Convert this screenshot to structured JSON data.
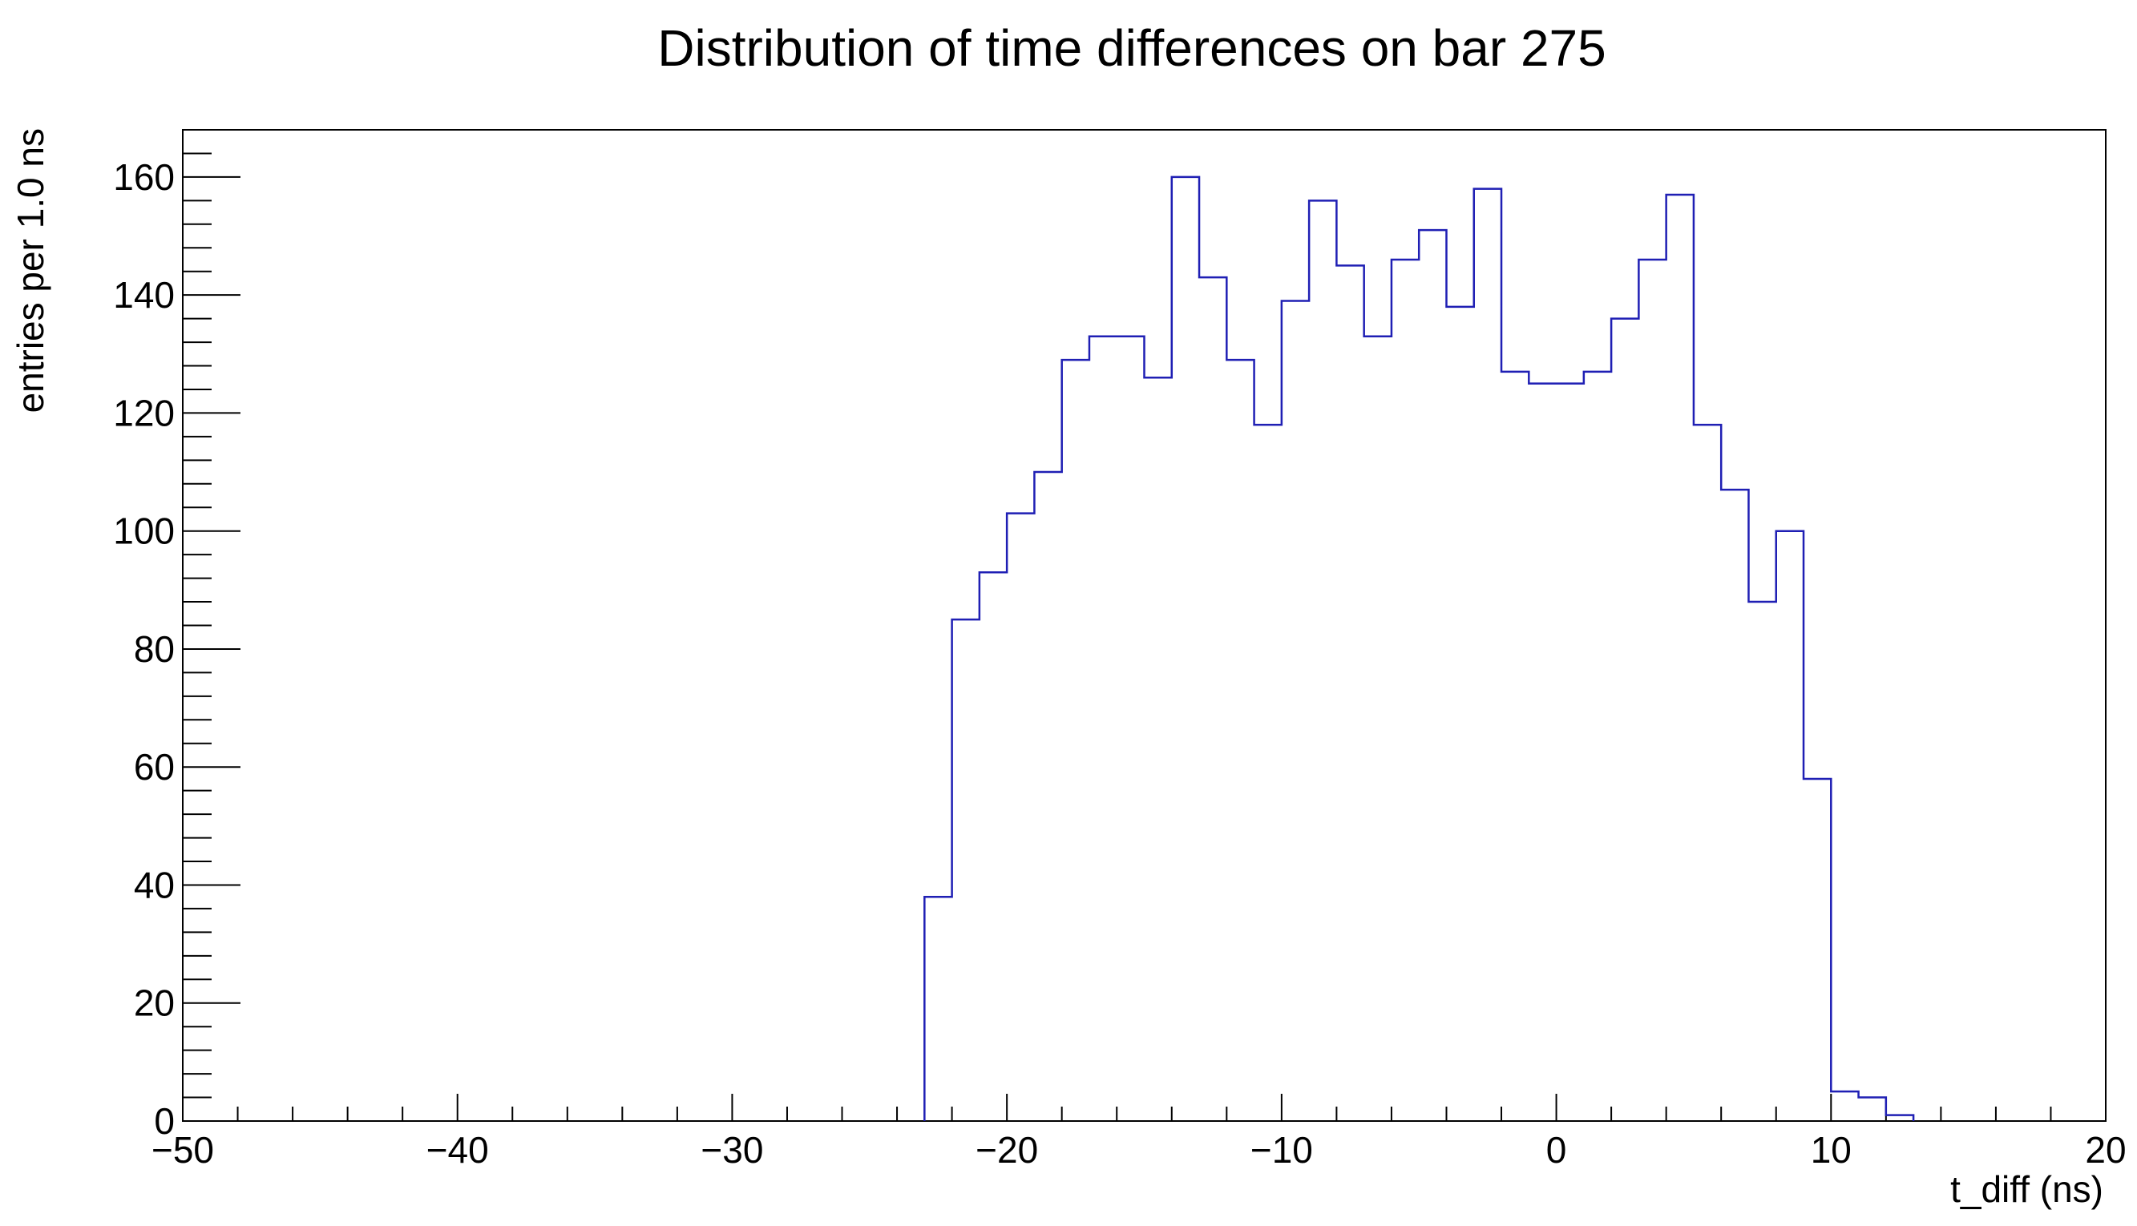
{
  "chart_data": {
    "type": "bar",
    "title": "Distribution of time differences on bar 275",
    "xlabel": "t_diff (ns)",
    "ylabel": "entries per 1.0 ns",
    "xlim": [
      -50,
      20
    ],
    "ylim": [
      0,
      168
    ],
    "bin_width": 1.0,
    "x_ticks": [
      -50,
      -40,
      -30,
      -20,
      -10,
      0,
      10,
      20
    ],
    "x_tick_labels": [
      "−50",
      "−40",
      "−30",
      "−20",
      "−10",
      "0",
      "10",
      "20"
    ],
    "y_ticks": [
      0,
      20,
      40,
      60,
      80,
      100,
      120,
      140,
      160
    ],
    "y_tick_labels": [
      "0",
      "20",
      "40",
      "60",
      "80",
      "100",
      "120",
      "140",
      "160"
    ],
    "grid": false,
    "legend": "none",
    "line_color": "#1f1fb4",
    "bins": [
      {
        "x": -23,
        "y": 38
      },
      {
        "x": -22,
        "y": 85
      },
      {
        "x": -21,
        "y": 93
      },
      {
        "x": -20,
        "y": 103
      },
      {
        "x": -19,
        "y": 110
      },
      {
        "x": -18,
        "y": 129
      },
      {
        "x": -17,
        "y": 133
      },
      {
        "x": -16,
        "y": 133
      },
      {
        "x": -15,
        "y": 126
      },
      {
        "x": -14,
        "y": 160
      },
      {
        "x": -13,
        "y": 143
      },
      {
        "x": -12,
        "y": 129
      },
      {
        "x": -11,
        "y": 118
      },
      {
        "x": -10,
        "y": 139
      },
      {
        "x": -9,
        "y": 156
      },
      {
        "x": -8,
        "y": 145
      },
      {
        "x": -7,
        "y": 133
      },
      {
        "x": -6,
        "y": 146
      },
      {
        "x": -5,
        "y": 151
      },
      {
        "x": -4,
        "y": 138
      },
      {
        "x": -3,
        "y": 158
      },
      {
        "x": -2,
        "y": 127
      },
      {
        "x": -1,
        "y": 125
      },
      {
        "x": 0,
        "y": 125
      },
      {
        "x": 1,
        "y": 127
      },
      {
        "x": 2,
        "y": 136
      },
      {
        "x": 3,
        "y": 146
      },
      {
        "x": 4,
        "y": 157
      },
      {
        "x": 5,
        "y": 118
      },
      {
        "x": 6,
        "y": 107
      },
      {
        "x": 7,
        "y": 88
      },
      {
        "x": 8,
        "y": 100
      },
      {
        "x": 9,
        "y": 58
      },
      {
        "x": 10,
        "y": 5
      },
      {
        "x": 11,
        "y": 4
      },
      {
        "x": 12,
        "y": 1
      }
    ]
  }
}
